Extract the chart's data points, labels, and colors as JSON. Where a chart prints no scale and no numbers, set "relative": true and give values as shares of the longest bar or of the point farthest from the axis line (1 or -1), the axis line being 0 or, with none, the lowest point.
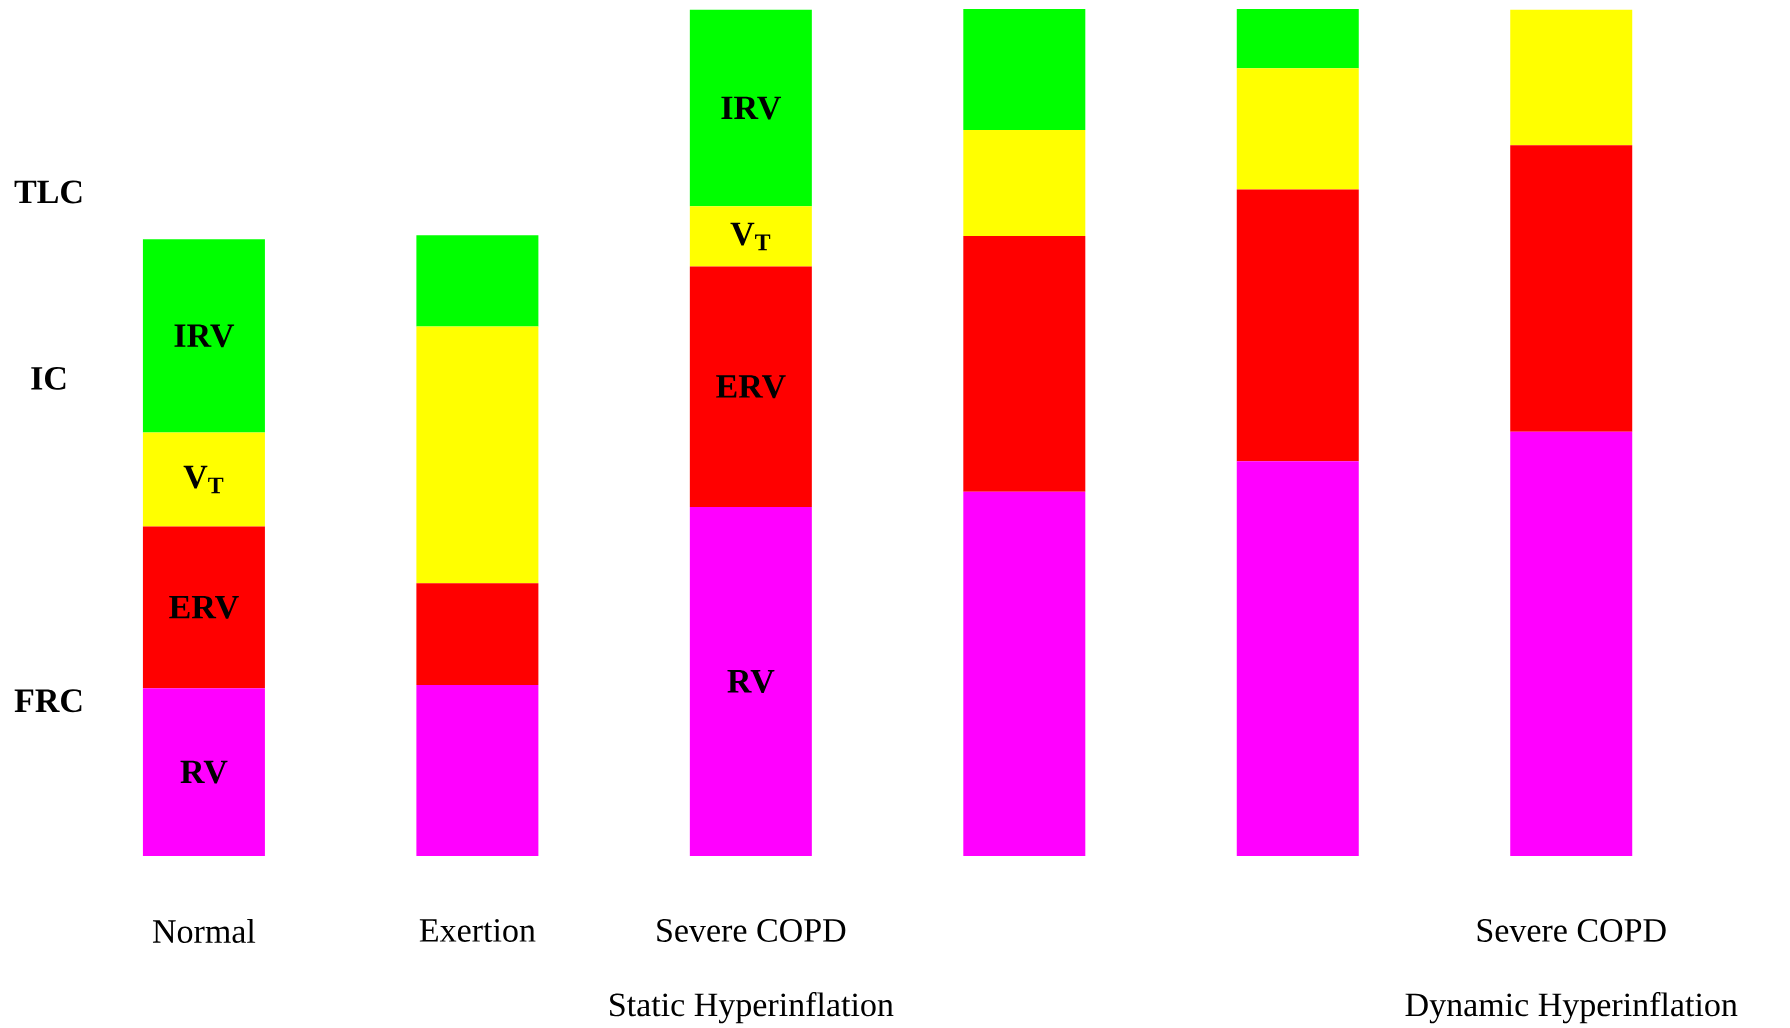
{
  "chart_data": {
    "type": "bar",
    "stacked": true,
    "relative": true,
    "categories": [
      "Normal",
      "Exertion",
      "Severe COPD",
      null,
      null,
      "Severe COPD"
    ],
    "series": [
      {
        "name": "RV",
        "color": "#ff00ff",
        "values": [
          0.198,
          0.202,
          0.412,
          0.43,
          0.466,
          0.501
        ]
      },
      {
        "name": "ERV",
        "color": "#ff0000",
        "values": [
          0.191,
          0.12,
          0.284,
          0.302,
          0.321,
          0.338
        ]
      },
      {
        "name": "V$_{T}$",
        "color": "#ffff00",
        "values": [
          0.111,
          0.303,
          0.071,
          0.125,
          0.143,
          0.16
        ]
      },
      {
        "name": "IRV",
        "color": "#00ff00",
        "values": [
          0.228,
          0.108,
          0.232,
          0.143,
          0.07,
          null
        ]
      }
    ],
    "annotations": [
      "TLC",
      "IC",
      "FRC",
      "Static Hyperinflation",
      "Dynamic Hyperinflation"
    ]
  }
}
